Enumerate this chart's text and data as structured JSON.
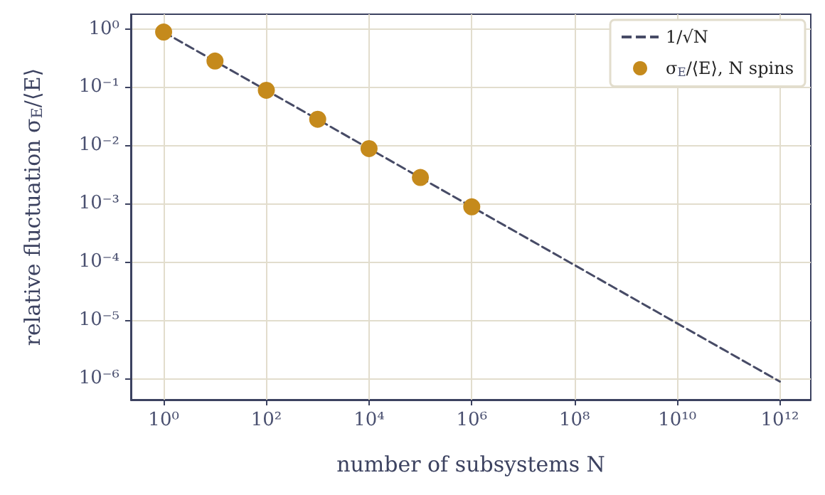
{
  "chart_data": {
    "type": "scatter",
    "xlabel": "number of subsystems N",
    "ylabel": "relative fluctuation σ$_{E}$/⟨E⟩",
    "log": "xy",
    "xlim": [
      0.23,
      4000000000000.0
    ],
    "ylim": [
      4.3e-07,
      1.78
    ],
    "xticks": [
      {
        "value": 1,
        "label": "10⁰"
      },
      {
        "value": 100,
        "label": "10²"
      },
      {
        "value": 10000,
        "label": "10⁴"
      },
      {
        "value": 1000000,
        "label": "10⁶"
      },
      {
        "value": 100000000,
        "label": "10⁸"
      },
      {
        "value": 10000000000,
        "label": "10¹⁰"
      },
      {
        "value": 1000000000000,
        "label": "10¹²"
      }
    ],
    "yticks": [
      {
        "value": 1e-06,
        "label": "10⁻⁶"
      },
      {
        "value": 1e-05,
        "label": "10⁻⁵"
      },
      {
        "value": 0.0001,
        "label": "10⁻⁴"
      },
      {
        "value": 0.001,
        "label": "10⁻³"
      },
      {
        "value": 0.01,
        "label": "10⁻²"
      },
      {
        "value": 0.1,
        "label": "10⁻¹"
      },
      {
        "value": 1,
        "label": "10⁰"
      }
    ],
    "grid": true,
    "legend": "top right",
    "series": [
      {
        "type": "line",
        "name": "1/√N",
        "color": "#474b66",
        "line_style": "dashed",
        "marker": "none",
        "x": [
          1,
          1000000000000
        ],
        "values": [
          0.88,
          8.8e-07
        ]
      },
      {
        "type": "scatter",
        "name": "σ$_{E}$/⟨E⟩, N spins",
        "color": "#c58a1c",
        "marker": "circle",
        "x": [
          1,
          10,
          100,
          1000,
          10000,
          100000,
          1000000
        ],
        "values": [
          0.88,
          0.28,
          0.088,
          0.028,
          0.0088,
          0.0028,
          0.00088
        ]
      }
    ]
  }
}
